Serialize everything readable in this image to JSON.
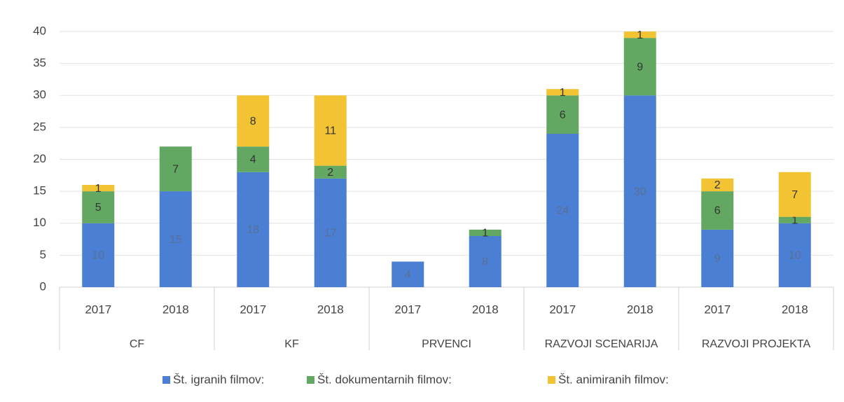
{
  "chart_data": {
    "type": "stacked_bar",
    "categories": [
      "2017",
      "2018",
      "2017",
      "2018",
      "2017",
      "2018",
      "2017",
      "2018",
      "2017",
      "2018"
    ],
    "groups": [
      "CF",
      "KF",
      "PRVENCI",
      "RAZVOJI SCENARIJA",
      "RAZVOJI PROJEKTA"
    ],
    "series": [
      {
        "name": "Št. igranih filmov:",
        "color": "#4a7fd4",
        "values": [
          10,
          15,
          18,
          17,
          4,
          8,
          24,
          30,
          9,
          10
        ]
      },
      {
        "name": "Št. dokumentarnih filmov:",
        "color": "#62a862",
        "values": [
          5,
          7,
          4,
          2,
          null,
          1,
          6,
          9,
          6,
          1
        ]
      },
      {
        "name": "Št. animiranih filmov:",
        "color": "#f2c433",
        "values": [
          1,
          null,
          8,
          11,
          null,
          null,
          1,
          1,
          2,
          7
        ]
      }
    ],
    "ylim": [
      0,
      40
    ],
    "yticks": [
      0,
      5,
      10,
      15,
      20,
      25,
      30,
      35,
      40
    ],
    "grid": true,
    "legend": "bottom"
  }
}
